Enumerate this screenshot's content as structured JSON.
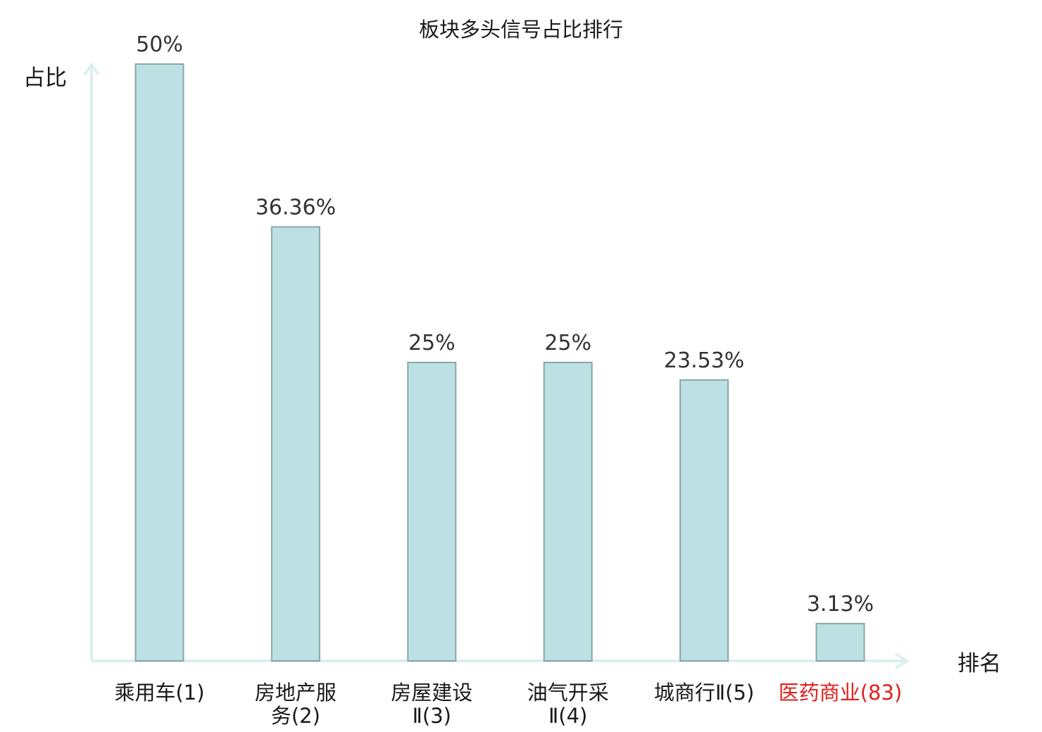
{
  "chart_data": {
    "type": "bar",
    "title": "板块多头信号占比排行",
    "ylabel": "占比",
    "xlabel": "排名",
    "ylim": [
      0,
      50
    ],
    "grid": false,
    "categories": [
      {
        "lines": [
          "乘用车(1)"
        ],
        "highlight": false
      },
      {
        "lines": [
          "房地产服",
          "务(2)"
        ],
        "highlight": false
      },
      {
        "lines": [
          "房屋建设",
          "Ⅱ(3)"
        ],
        "highlight": false
      },
      {
        "lines": [
          "油气开采",
          "Ⅱ(4)"
        ],
        "highlight": false
      },
      {
        "lines": [
          "城商行Ⅱ(5)"
        ],
        "highlight": false
      },
      {
        "lines": [
          "医药商业(83)"
        ],
        "highlight": true
      }
    ],
    "values": [
      50,
      36.36,
      25,
      25,
      23.53,
      3.13
    ],
    "value_labels": [
      "50%",
      "36.36%",
      "25%",
      "25%",
      "23.53%",
      "3.13%"
    ],
    "colors": {
      "bar_fill": "#bde0e3",
      "bar_stroke": "#8aa6a9",
      "axis": "#dcefee",
      "highlight_text": "#e0201e"
    }
  }
}
